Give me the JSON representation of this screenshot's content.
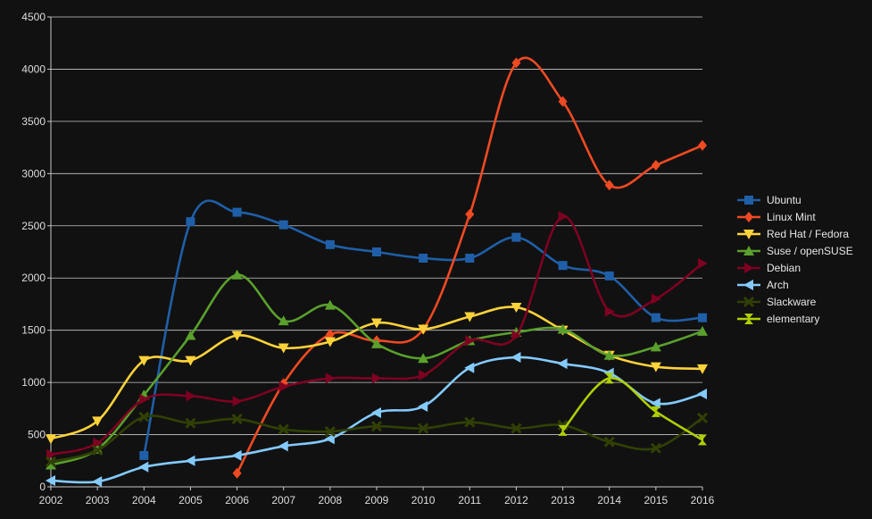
{
  "chart_data": {
    "type": "line",
    "title": "",
    "xlabel": "",
    "ylabel": "",
    "x": [
      2002,
      2003,
      2004,
      2005,
      2006,
      2007,
      2008,
      2009,
      2010,
      2011,
      2012,
      2013,
      2014,
      2015,
      2016
    ],
    "ylim": [
      0,
      4500
    ],
    "yticks": [
      0,
      500,
      1000,
      1500,
      2000,
      2500,
      3000,
      3500,
      4000,
      4500
    ],
    "grid": true,
    "legend_position": "right",
    "series": [
      {
        "name": "Ubuntu",
        "color": "#1f5fa8",
        "marker": "square",
        "values": [
          null,
          null,
          300,
          2540,
          2630,
          2510,
          2320,
          2250,
          2190,
          2190,
          2390,
          2120,
          2020,
          1620,
          1620
        ]
      },
      {
        "name": "Linux Mint",
        "color": "#f04a23",
        "marker": "diamond",
        "values": [
          null,
          null,
          null,
          null,
          130,
          990,
          1460,
          1400,
          1510,
          2610,
          4060,
          3690,
          2890,
          3080,
          3270
        ]
      },
      {
        "name": "Red Hat / Fedora",
        "color": "#ffd23a",
        "marker": "triangle-down",
        "values": [
          460,
          630,
          1210,
          1210,
          1450,
          1330,
          1390,
          1570,
          1510,
          1630,
          1720,
          1500,
          1260,
          1150,
          1130
        ]
      },
      {
        "name": "Suse / openSUSE",
        "color": "#5aa02c",
        "marker": "triangle-up",
        "values": [
          210,
          360,
          880,
          1450,
          2030,
          1590,
          1740,
          1370,
          1230,
          1400,
          1480,
          1510,
          1260,
          1340,
          1490
        ]
      },
      {
        "name": "Debian",
        "color": "#7e0021",
        "marker": "triangle-right",
        "values": [
          310,
          420,
          840,
          870,
          820,
          960,
          1040,
          1040,
          1070,
          1400,
          1450,
          2590,
          1680,
          1800,
          2140
        ]
      },
      {
        "name": "Arch",
        "color": "#83caff",
        "marker": "triangle-left",
        "values": [
          60,
          50,
          190,
          250,
          300,
          390,
          460,
          710,
          770,
          1140,
          1240,
          1180,
          1090,
          800,
          890
        ]
      },
      {
        "name": "Slackware",
        "color": "#314004",
        "marker": "x",
        "values": [
          240,
          350,
          670,
          610,
          650,
          550,
          530,
          580,
          560,
          620,
          560,
          590,
          430,
          370,
          660
        ]
      },
      {
        "name": "elementary",
        "color": "#aecf00",
        "marker": "hourglass",
        "values": [
          null,
          null,
          null,
          null,
          null,
          null,
          null,
          null,
          null,
          null,
          null,
          540,
          1040,
          720,
          450
        ]
      }
    ]
  }
}
